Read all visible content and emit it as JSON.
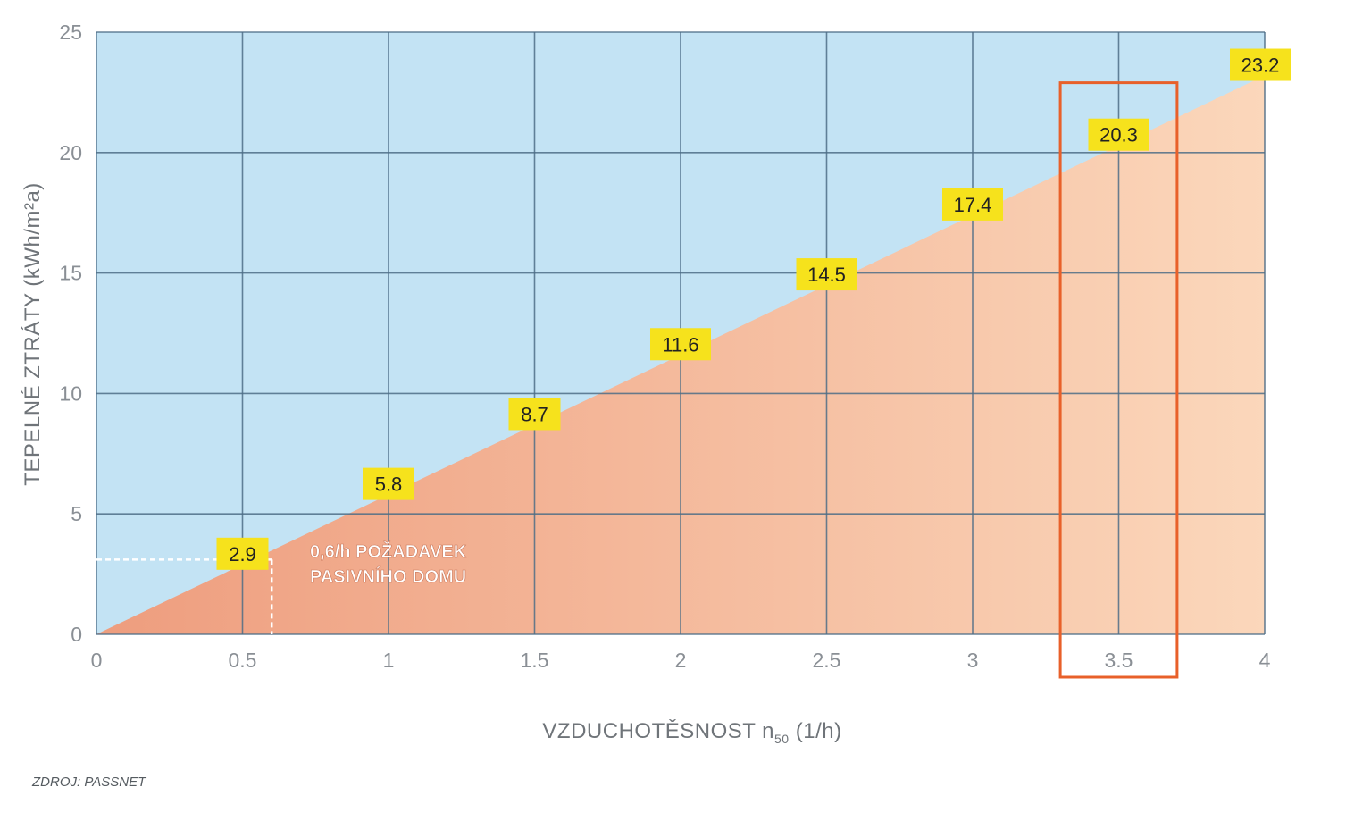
{
  "chart_data": {
    "type": "area",
    "xlabel": "VZDUCHOTĚSNOST n",
    "xlabel_sub": "50",
    "xlabel_unit": "(1/h)",
    "ylabel": "TEPELNÉ ZTRÁTY",
    "ylabel_unit": "(kWh/m²a)",
    "xlim": [
      0,
      4
    ],
    "ylim": [
      0,
      25
    ],
    "x_ticks": [
      0,
      0.5,
      1,
      1.5,
      2,
      2.5,
      3,
      3.5,
      4
    ],
    "x_tick_labels": [
      "0",
      "0.5",
      "1",
      "1.5",
      "2",
      "2.5",
      "3",
      "3.5",
      "4"
    ],
    "y_ticks": [
      0,
      5,
      10,
      15,
      20,
      25
    ],
    "y_tick_labels": [
      "0",
      "5",
      "10",
      "15",
      "20",
      "25"
    ],
    "grid": true,
    "series": [
      {
        "x": [
          0,
          0.5,
          1,
          1.5,
          2,
          2.5,
          3,
          3.5,
          4
        ],
        "values": [
          0,
          2.9,
          5.8,
          8.7,
          11.6,
          14.5,
          17.4,
          20.3,
          23.2
        ]
      }
    ],
    "data_labels": [
      {
        "x": 0.5,
        "y": 2.9,
        "text": "2.9"
      },
      {
        "x": 1,
        "y": 5.8,
        "text": "5.8"
      },
      {
        "x": 1.5,
        "y": 8.7,
        "text": "8.7"
      },
      {
        "x": 2,
        "y": 11.6,
        "text": "11.6"
      },
      {
        "x": 2.5,
        "y": 14.5,
        "text": "14.5"
      },
      {
        "x": 3,
        "y": 17.4,
        "text": "17.4"
      },
      {
        "x": 3.5,
        "y": 20.3,
        "text": "20.3"
      },
      {
        "x": 4,
        "y": 23.2,
        "text": "23.2"
      }
    ],
    "annotation": {
      "x": 0.6,
      "y": 3.1,
      "lines": [
        "0,6/h POŽADAVEK",
        "PASIVNÍHO DOMU"
      ]
    },
    "highlight": {
      "x_from": 3.3,
      "x_to": 3.7,
      "y_top": 22.9
    },
    "source": "ZDROJ: PASSNET",
    "colors": {
      "background": "#c3e3f4",
      "area_left": "#ee9d7e",
      "area_right": "#fbd7bb",
      "grid": "#4d6d86",
      "label_box": "#f6e21c",
      "highlight": "#e8602a",
      "dashed": "#ffffff"
    }
  }
}
